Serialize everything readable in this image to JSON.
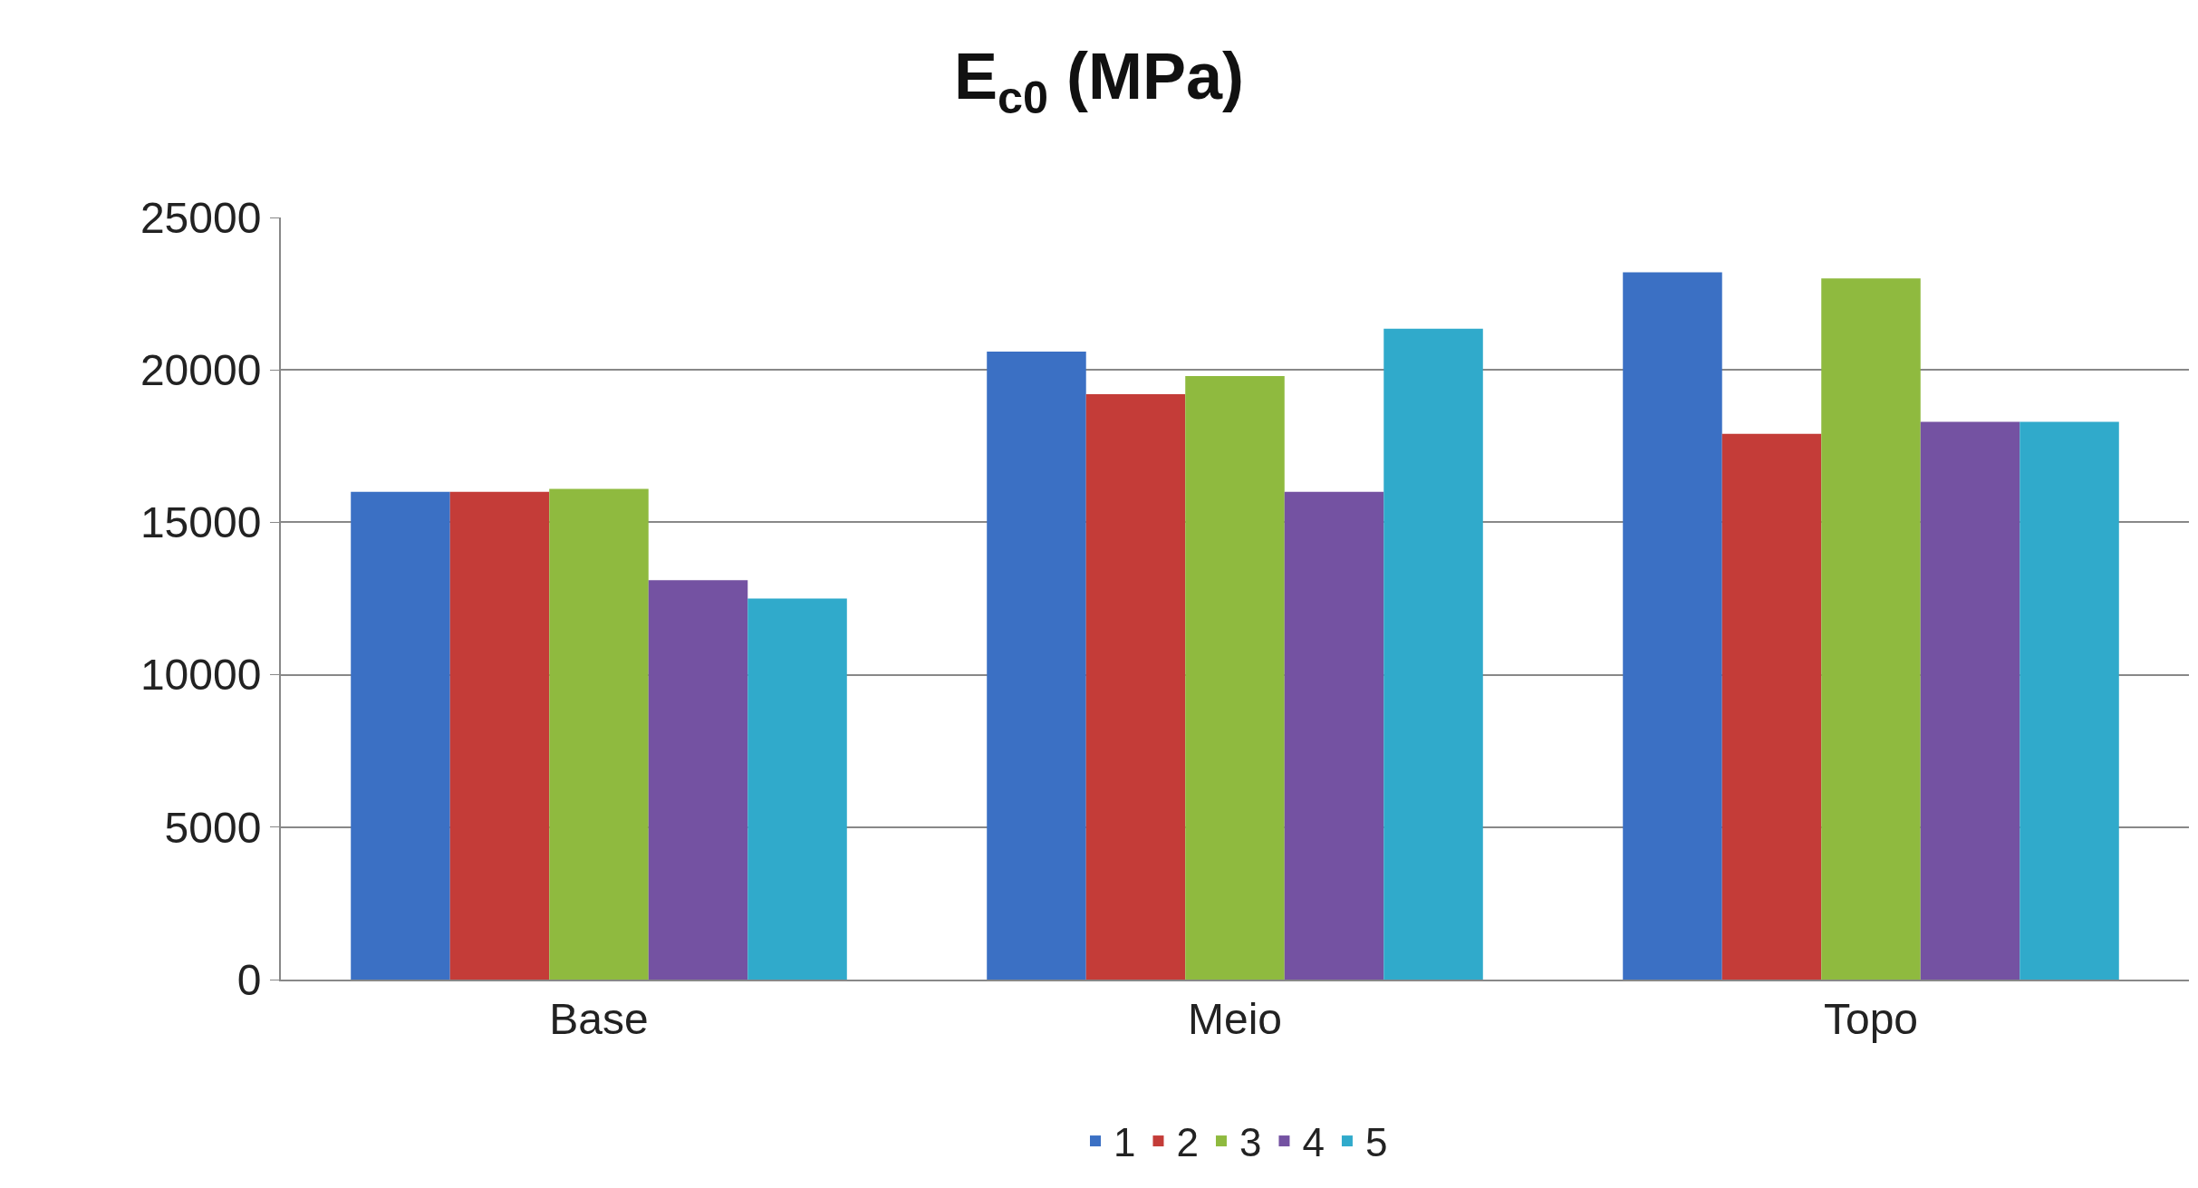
{
  "chart_data": {
    "type": "bar",
    "title": "E$_{c0}$ (MPa)",
    "categories": [
      "Base",
      "Meio",
      "Topo"
    ],
    "series": [
      {
        "name": "1",
        "color": "#3b70c4",
        "values": [
          16000,
          20600,
          23200
        ]
      },
      {
        "name": "2",
        "color": "#c43c38",
        "values": [
          16000,
          19200,
          17900
        ]
      },
      {
        "name": "3",
        "color": "#8fba3f",
        "values": [
          16100,
          19800,
          23000
        ]
      },
      {
        "name": "4",
        "color": "#7452a2",
        "values": [
          13100,
          16000,
          18300
        ]
      },
      {
        "name": "5",
        "color": "#30aacb",
        "values": [
          12500,
          21350,
          18300
        ]
      }
    ],
    "ylim": [
      0,
      25000
    ],
    "yticks": [
      0,
      5000,
      10000,
      15000,
      20000,
      25000
    ],
    "grid": "y",
    "legend": "bottom"
  }
}
